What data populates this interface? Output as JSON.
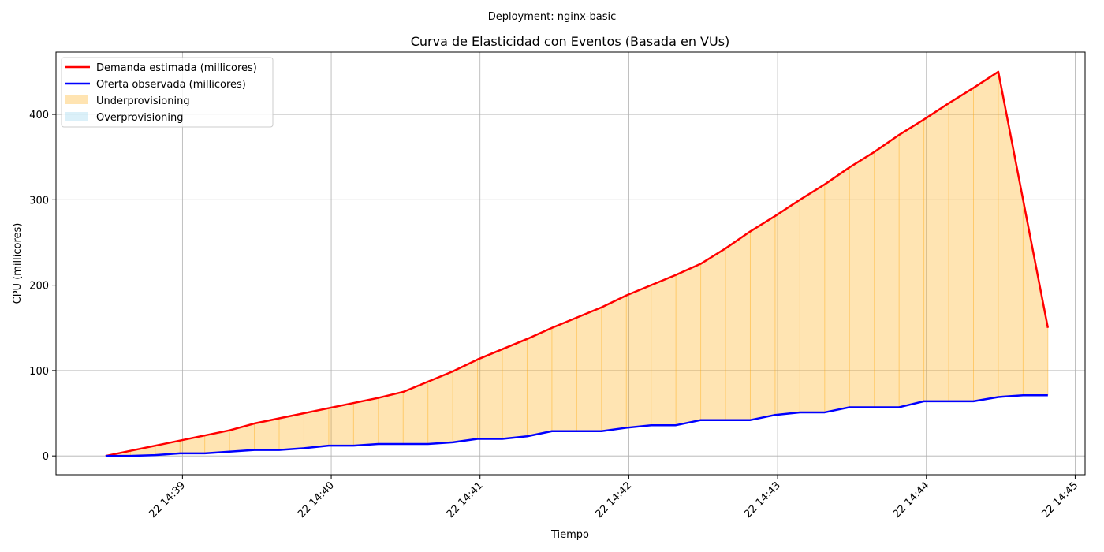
{
  "suptitle": "Deployment: nginx-basic",
  "chart_data": {
    "type": "line",
    "title": "Curva de Elasticidad con Eventos (Basada en VUs)",
    "xlabel": "Tiempo",
    "ylabel": "CPU (millicores)",
    "xlim": [
      "22 14:38:09",
      "22 14:45:04"
    ],
    "ylim": [
      -22,
      473
    ],
    "xticks": [
      {
        "t": "22 14:39:00",
        "label": "22 14:39"
      },
      {
        "t": "22 14:40:00",
        "label": "22 14:40"
      },
      {
        "t": "22 14:41:00",
        "label": "22 14:41"
      },
      {
        "t": "22 14:42:00",
        "label": "22 14:42"
      },
      {
        "t": "22 14:43:00",
        "label": "22 14:43"
      },
      {
        "t": "22 14:44:00",
        "label": "22 14:44"
      },
      {
        "t": "22 14:45:00",
        "label": "22 14:45"
      }
    ],
    "yticks": [
      0,
      100,
      200,
      300,
      400
    ],
    "grid": true,
    "legend_position": "top-left",
    "x": [
      "22 14:38:29",
      "22 14:38:39",
      "22 14:38:49",
      "22 14:38:59",
      "22 14:39:09",
      "22 14:39:19",
      "22 14:39:29",
      "22 14:39:39",
      "22 14:39:49",
      "22 14:39:59",
      "22 14:40:09",
      "22 14:40:19",
      "22 14:40:29",
      "22 14:40:39",
      "22 14:40:49",
      "22 14:40:59",
      "22 14:41:09",
      "22 14:41:19",
      "22 14:41:29",
      "22 14:41:39",
      "22 14:41:49",
      "22 14:41:59",
      "22 14:42:09",
      "22 14:42:19",
      "22 14:42:29",
      "22 14:42:39",
      "22 14:42:49",
      "22 14:42:59",
      "22 14:43:09",
      "22 14:43:19",
      "22 14:43:29",
      "22 14:43:39",
      "22 14:43:49",
      "22 14:43:59",
      "22 14:44:09",
      "22 14:44:19",
      "22 14:44:29",
      "22 14:44:39",
      "22 14:44:49"
    ],
    "series": [
      {
        "name": "Demanda estimada (millicores)",
        "color": "#ff0000",
        "values": [
          0,
          6,
          12,
          18,
          24,
          30,
          38,
          44,
          50,
          56,
          62,
          68,
          75,
          87,
          99,
          113,
          125,
          137,
          150,
          162,
          174,
          188,
          200,
          212,
          225,
          243,
          263,
          281,
          300,
          318,
          338,
          356,
          376,
          394,
          413,
          431,
          450,
          300,
          150
        ]
      },
      {
        "name": "Oferta observada (millicores)",
        "color": "#0000ff",
        "values": [
          0,
          0,
          1,
          3,
          3,
          5,
          7,
          7,
          9,
          12,
          12,
          14,
          14,
          14,
          16,
          20,
          20,
          23,
          29,
          29,
          29,
          33,
          36,
          36,
          42,
          42,
          42,
          48,
          51,
          51,
          57,
          57,
          57,
          64,
          64,
          64,
          69,
          71,
          71
        ]
      }
    ],
    "fills": [
      {
        "name": "Underprovisioning",
        "color": "#ffa500",
        "between": "demanda > oferta"
      },
      {
        "name": "Overprovisioning",
        "color": "#87ceeb",
        "between": "oferta > demanda"
      }
    ]
  }
}
